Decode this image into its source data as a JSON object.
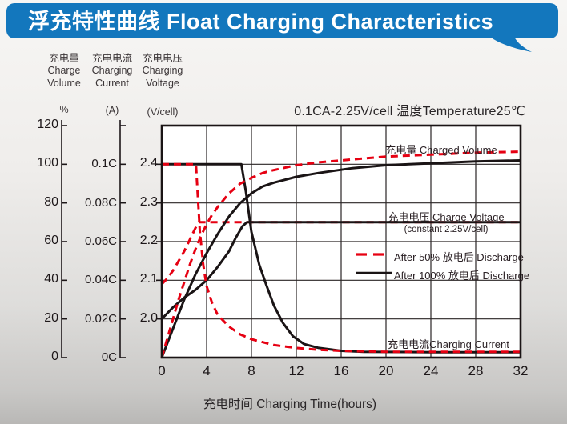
{
  "header": {
    "title": "浮充特性曲线 Float Charging Characteristics",
    "bg_color": "#1377bd"
  },
  "condition_note": "0.1CA-2.25V/cell  温度Temperature25℃",
  "axes": {
    "volume": {
      "header": [
        "充电量",
        "Charge",
        "Volume"
      ],
      "unit": "%",
      "tick_labels": [
        "0",
        "20",
        "40",
        "60",
        "80",
        "100",
        "120"
      ]
    },
    "current": {
      "header": [
        "充电电流",
        "Charging",
        "Current"
      ],
      "unit": "(A)",
      "tick_labels": [
        "0C",
        "0.02C",
        "0.04C",
        "0.06C",
        "0.08C",
        "0.1C"
      ]
    },
    "voltage": {
      "header": [
        "充电电压",
        "Charging",
        "Voltage"
      ],
      "unit": "(V/cell)",
      "tick_labels": [
        "2.0",
        "2.1",
        "2.2",
        "2.3",
        "2.4"
      ]
    },
    "x": {
      "title": "充电时间 Charging Time(hours)",
      "tick_labels": [
        "0",
        "4",
        "8",
        "12",
        "16",
        "20",
        "24",
        "28",
        "32"
      ]
    }
  },
  "plot_labels": {
    "volume": "充电量 Charged Volume",
    "voltage_line1": "充电电压 Charge Voltage",
    "voltage_line2": "(constant 2.25V/cell)",
    "current": "充电电流Charging Current"
  },
  "legend": [
    {
      "label": "After 50%  放电后 Discharge",
      "color": "#e60012",
      "dash": true
    },
    {
      "label": "After 100%  放电后 Discharge",
      "color": "#1a1415",
      "dash": false
    }
  ],
  "colors": {
    "red_curve": "#e60012",
    "black_curve": "#1a1415",
    "grid": "#2a2425",
    "plot_bg": "#ffffff",
    "header_blue": "#1377bd"
  },
  "chart_data": {
    "type": "line",
    "title": "浮充特性曲线 Float Charging Characteristics",
    "xlabel": "充电时间 Charging Time(hours)",
    "x_range_hours": [
      0,
      32
    ],
    "x_grid_step_hours": 4,
    "grid": true,
    "legend_position": "middle-right",
    "axis_alignment_note": "Three stacked y-scales share one grid: volume 0-120 %, current 0C-0.1C aligned so 0.1C = 100%, voltage 2.0-2.4 V/cell aligned so 2.4V = 100% and 2.0V = 20%; charging conditions 0.1CA, 2.25V/cell, temperature 25°C",
    "series": [
      {
        "name": "charge_voltage_after_50_discharge",
        "quantity": "voltage",
        "unit": "V/cell",
        "color": "#e60012",
        "dash": true,
        "points": [
          [
            0,
            2.09
          ],
          [
            0.5,
            2.105
          ],
          [
            1,
            2.125
          ],
          [
            1.5,
            2.15
          ],
          [
            2,
            2.175
          ],
          [
            2.5,
            2.205
          ],
          [
            3,
            2.235
          ],
          [
            3.3,
            2.25
          ],
          [
            32,
            2.25
          ]
        ]
      },
      {
        "name": "charge_voltage_after_100_discharge",
        "quantity": "voltage",
        "unit": "V/cell",
        "color": "#1a1415",
        "dash": false,
        "points": [
          [
            0,
            2.0
          ],
          [
            1,
            2.03
          ],
          [
            2,
            2.055
          ],
          [
            3,
            2.075
          ],
          [
            4,
            2.1
          ],
          [
            5,
            2.135
          ],
          [
            6,
            2.175
          ],
          [
            6.6,
            2.21
          ],
          [
            7.2,
            2.24
          ],
          [
            7.6,
            2.25
          ],
          [
            32,
            2.25
          ]
        ]
      },
      {
        "name": "charged_volume_after_100_discharge",
        "quantity": "volume",
        "unit": "%",
        "color": "#1a1415",
        "dash": false,
        "points": [
          [
            0,
            0
          ],
          [
            1,
            15
          ],
          [
            2,
            30
          ],
          [
            3,
            43
          ],
          [
            4,
            54
          ],
          [
            5,
            64
          ],
          [
            6,
            73
          ],
          [
            7,
            80
          ],
          [
            8,
            85
          ],
          [
            9,
            88.5
          ],
          [
            10,
            90.5
          ],
          [
            12,
            93.5
          ],
          [
            14,
            95.5
          ],
          [
            17,
            98
          ],
          [
            20,
            99.5
          ],
          [
            24,
            100.5
          ],
          [
            28,
            101.5
          ],
          [
            32,
            102
          ]
        ]
      },
      {
        "name": "charging_current_after_100_discharge",
        "quantity": "current",
        "unit": "CA",
        "color": "#1a1415",
        "dash": false,
        "points": [
          [
            0,
            0.1
          ],
          [
            7.1,
            0.1
          ],
          [
            7.5,
            0.086
          ],
          [
            8,
            0.065
          ],
          [
            8.7,
            0.048
          ],
          [
            9.3,
            0.038
          ],
          [
            10,
            0.027
          ],
          [
            10.8,
            0.018
          ],
          [
            11.7,
            0.011
          ],
          [
            12.7,
            0.007
          ],
          [
            14,
            0.005
          ],
          [
            16,
            0.0035
          ],
          [
            18,
            0.003
          ],
          [
            24,
            0.0028
          ],
          [
            32,
            0.0028
          ]
        ]
      },
      {
        "name": "charged_volume_after_50_discharge",
        "quantity": "volume",
        "unit": "%",
        "color": "#e60012",
        "dash": true,
        "points": [
          [
            0,
            0
          ],
          [
            0.5,
            10
          ],
          [
            1,
            20
          ],
          [
            1.5,
            30
          ],
          [
            2,
            39
          ],
          [
            2.5,
            48
          ],
          [
            3,
            56
          ],
          [
            3.5,
            63
          ],
          [
            4,
            69
          ],
          [
            4.5,
            74
          ],
          [
            5,
            78
          ],
          [
            6,
            85
          ],
          [
            7,
            90
          ],
          [
            8,
            93
          ],
          [
            9,
            95.5
          ],
          [
            10,
            97
          ],
          [
            12,
            99.5
          ],
          [
            14,
            101
          ],
          [
            16,
            102
          ],
          [
            20,
            104
          ],
          [
            24,
            105
          ],
          [
            28,
            106
          ],
          [
            32,
            106.5
          ]
        ]
      },
      {
        "name": "charging_current_after_50_discharge",
        "quantity": "current",
        "unit": "CA",
        "color": "#e60012",
        "dash": true,
        "points": [
          [
            0,
            0.1
          ],
          [
            3.05,
            0.1
          ],
          [
            3.2,
            0.085
          ],
          [
            3.4,
            0.065
          ],
          [
            3.7,
            0.048
          ],
          [
            4,
            0.037
          ],
          [
            4.5,
            0.028
          ],
          [
            5,
            0.022
          ],
          [
            6,
            0.016
          ],
          [
            7,
            0.012
          ],
          [
            8,
            0.0095
          ],
          [
            10,
            0.0065
          ],
          [
            12,
            0.005
          ],
          [
            14,
            0.004
          ],
          [
            16,
            0.0035
          ],
          [
            20,
            0.003
          ],
          [
            26,
            0.003
          ],
          [
            32,
            0.003
          ]
        ]
      }
    ]
  }
}
